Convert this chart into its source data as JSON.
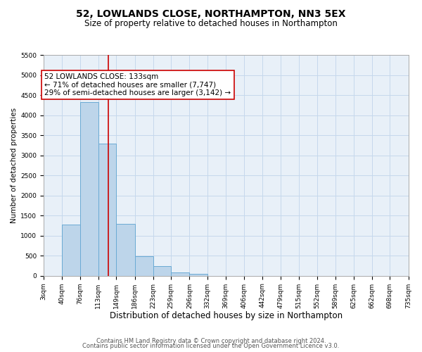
{
  "title": "52, LOWLANDS CLOSE, NORTHAMPTON, NN3 5EX",
  "subtitle": "Size of property relative to detached houses in Northampton",
  "xlabel": "Distribution of detached houses by size in Northampton",
  "ylabel": "Number of detached properties",
  "footer_lines": [
    "Contains HM Land Registry data © Crown copyright and database right 2024.",
    "Contains public sector information licensed under the Open Government Licence v3.0."
  ],
  "bin_labels": [
    "3sqm",
    "40sqm",
    "76sqm",
    "113sqm",
    "149sqm",
    "186sqm",
    "223sqm",
    "259sqm",
    "296sqm",
    "332sqm",
    "369sqm",
    "406sqm",
    "442sqm",
    "479sqm",
    "515sqm",
    "552sqm",
    "589sqm",
    "625sqm",
    "662sqm",
    "698sqm",
    "735sqm"
  ],
  "bar_values": [
    0,
    1270,
    4330,
    3300,
    1290,
    480,
    240,
    90,
    50,
    0,
    0,
    0,
    0,
    0,
    0,
    0,
    0,
    0,
    0,
    0
  ],
  "bar_color": "#bdd5ea",
  "bar_edgecolor": "#6aaad4",
  "vline_x": 133,
  "vline_color": "#cc0000",
  "annotation_line1": "52 LOWLANDS CLOSE: 133sqm",
  "annotation_line2": "← 71% of detached houses are smaller (7,747)",
  "annotation_line3": "29% of semi-detached houses are larger (3,142) →",
  "annotation_box_edgecolor": "#cc0000",
  "ylim": [
    0,
    5500
  ],
  "yticks": [
    0,
    500,
    1000,
    1500,
    2000,
    2500,
    3000,
    3500,
    4000,
    4500,
    5000,
    5500
  ],
  "grid_color": "#c5d8ec",
  "bg_color": "#e8f0f8",
  "title_fontsize": 10,
  "subtitle_fontsize": 8.5,
  "xlabel_fontsize": 8.5,
  "ylabel_fontsize": 7.5,
  "tick_fontsize": 6.5,
  "annotation_fontsize": 7.5,
  "footer_fontsize": 6
}
